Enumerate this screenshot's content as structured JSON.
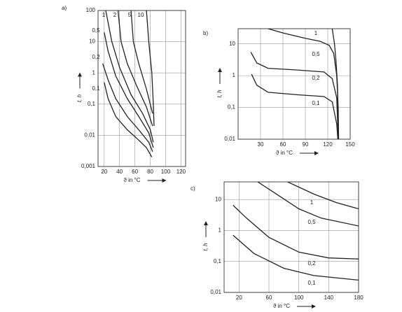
{
  "chart_data": [
    {
      "type": "line",
      "panel_label": "a)",
      "xlabel": "ϑ in °C",
      "ylabel": "t, h",
      "ylog": true,
      "grid": true,
      "xlim": [
        12,
        126
      ],
      "ylim": [
        0.001,
        100
      ],
      "xticks": [
        20,
        40,
        60,
        80,
        100,
        120
      ],
      "yticks": [
        100,
        10,
        1,
        {
          "value": 0.1,
          "label": "0,1"
        },
        {
          "value": 0.01,
          "label": "0,01"
        },
        {
          "value": 0.001,
          "label": "0,001"
        }
      ],
      "series": [
        {
          "name": "0,1",
          "color": "#222222",
          "x": [
            20,
            25,
            35,
            50,
            65,
            75,
            82
          ],
          "values": [
            0.5,
            0.15,
            0.04,
            0.015,
            0.007,
            0.004,
            0.002
          ]
        },
        {
          "name": "0,2",
          "color": "#222222",
          "x": [
            18,
            25,
            35,
            50,
            65,
            78,
            83
          ],
          "values": [
            2,
            0.6,
            0.15,
            0.04,
            0.015,
            0.006,
            0.003
          ]
        },
        {
          "name": "0,5",
          "color": "#222222",
          "x": [
            20,
            25,
            35,
            50,
            65,
            78,
            84
          ],
          "values": [
            20,
            5,
            0.8,
            0.15,
            0.04,
            0.012,
            0.004
          ]
        },
        {
          "name": "1",
          "color": "#222222",
          "x": [
            22,
            30,
            40,
            55,
            70,
            80,
            84
          ],
          "values": [
            100,
            10,
            1.5,
            0.2,
            0.05,
            0.015,
            0.006
          ]
        },
        {
          "name": "2",
          "color": "#222222",
          "x": [
            38,
            42,
            50,
            62,
            75,
            83
          ],
          "values": [
            100,
            10,
            2,
            0.4,
            0.08,
            0.02
          ]
        },
        {
          "name": "5",
          "color": "#222222",
          "x": [
            55,
            58,
            65,
            75,
            83
          ],
          "values": [
            100,
            10,
            2,
            0.3,
            0.05
          ]
        },
        {
          "name": "10",
          "color": "#222222",
          "x": [
            75,
            78,
            82,
            84,
            85
          ],
          "values": [
            100,
            10,
            1,
            0.1,
            0.02
          ]
        }
      ]
    },
    {
      "type": "line",
      "panel_label": "b)",
      "xlabel": "ϑ in °C",
      "ylabel": "t, h",
      "ylog": true,
      "grid": true,
      "xlim": [
        0,
        150
      ],
      "ylim": [
        0.01,
        30
      ],
      "xticks": [
        30,
        60,
        90,
        120,
        150
      ],
      "yticks": [
        10,
        1,
        {
          "value": 0.1,
          "label": "0,1"
        },
        {
          "value": 0.01,
          "label": "0,01"
        }
      ],
      "series": [
        {
          "name": "0,1",
          "color": "#222222",
          "x": [
            18,
            25,
            40,
            80,
            115,
            126,
            132,
            133.5
          ],
          "values": [
            1.1,
            0.5,
            0.3,
            0.25,
            0.22,
            0.15,
            0.03,
            0.01
          ]
        },
        {
          "name": "0,2",
          "color": "#222222",
          "x": [
            17,
            25,
            40,
            80,
            115,
            126,
            132,
            134
          ],
          "values": [
            5.5,
            2.5,
            1.7,
            1.5,
            1.3,
            0.8,
            0.2,
            0.01
          ]
        },
        {
          "name": "0,5",
          "color": "#222222",
          "x": [
            40,
            60,
            90,
            110,
            122,
            128,
            132,
            134,
            134.5
          ],
          "values": [
            30,
            22,
            15,
            12,
            9,
            5,
            1,
            0.1,
            0.01
          ]
        },
        {
          "name": "1",
          "color": "#222222",
          "x": [
            126,
            129,
            131,
            133,
            134
          ],
          "values": [
            30,
            10,
            3,
            0.5,
            0.01
          ]
        }
      ]
    },
    {
      "type": "line",
      "panel_label": "c)",
      "xlabel": "ϑ in °C",
      "ylabel": "t, h",
      "ylog": true,
      "grid": true,
      "xlim": [
        0,
        180
      ],
      "ylim": [
        0.01,
        37
      ],
      "xticks": [
        20,
        60,
        100,
        140,
        180
      ],
      "yticks": [
        10,
        1,
        {
          "value": 0.1,
          "label": "0,1"
        },
        {
          "value": 0.01,
          "label": "0,01"
        }
      ],
      "series": [
        {
          "name": "0,1",
          "color": "#222222",
          "x": [
            12,
            40,
            80,
            120,
            180
          ],
          "values": [
            0.7,
            0.18,
            0.06,
            0.035,
            0.025
          ]
        },
        {
          "name": "0,2",
          "color": "#222222",
          "x": [
            12,
            30,
            60,
            100,
            140,
            180
          ],
          "values": [
            6.5,
            2.5,
            0.6,
            0.2,
            0.13,
            0.12
          ]
        },
        {
          "name": "0,5",
          "color": "#222222",
          "x": [
            45,
            70,
            100,
            130,
            180
          ],
          "values": [
            37,
            15,
            5,
            2.5,
            1.4
          ]
        },
        {
          "name": "1",
          "color": "#222222",
          "x": [
            85,
            120,
            150,
            180
          ],
          "values": [
            37,
            15,
            8,
            5
          ]
        }
      ]
    }
  ]
}
